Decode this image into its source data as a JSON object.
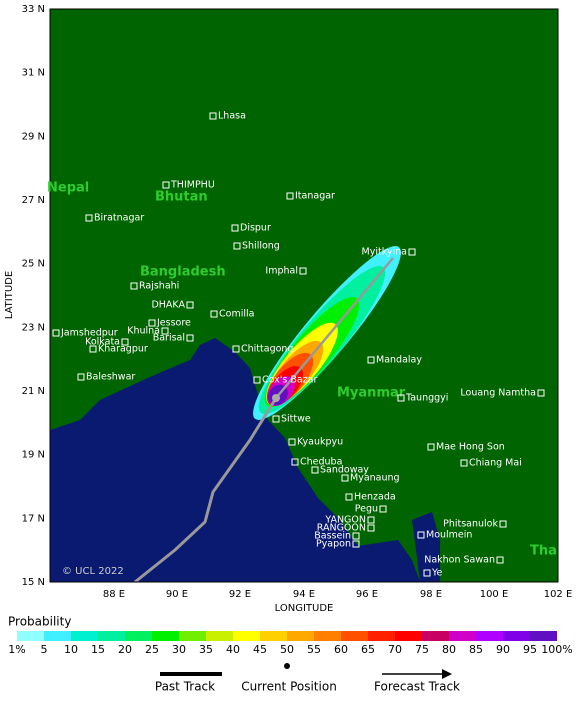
{
  "map": {
    "x_axis_label": "LONGITUDE",
    "y_axis_label": "LATITUDE",
    "x_ticks": [
      "88 E",
      "90 E",
      "92 E",
      "94 E",
      "96 E",
      "98 E",
      "100 E",
      "102 E"
    ],
    "y_ticks": [
      "33 N",
      "31 N",
      "29 N",
      "27 N",
      "25 N",
      "23 N",
      "21 N",
      "19 N",
      "17 N",
      "15 N"
    ],
    "countries": [
      "Nepal",
      "Bhutan",
      "Bangladesh",
      "Myanmar",
      "Tha"
    ],
    "places": [
      "Lhasa",
      "THIMPHU",
      "Itanagar",
      "Biratnagar",
      "Dispur",
      "Shillong",
      "Myitkyina",
      "Imphal",
      "Rajshahi",
      "DHAKA",
      "Comilla",
      "Jessore",
      "Khulna",
      "Jamshedpur",
      "Kolkata",
      "Barisal",
      "Kharagpur",
      "Chittagong",
      "Mandalay",
      "Baleshwar",
      "Cox's Bazar",
      "Taunggyi",
      "Louang Namtha",
      "Sittwe",
      "Kyaukpyu",
      "Mae Hong Son",
      "Cheduba",
      "Chiang Mai",
      "Sandoway",
      "Myanaung",
      "Henzada",
      "Pegu",
      "YANGON",
      "RANGOON",
      "Bassein",
      "Phitsanulok",
      "Moulmein",
      "Pyapon",
      "Nakhon Sawan",
      "Ye"
    ],
    "credit": "© UCL 2022"
  },
  "legend": {
    "title": "Probability",
    "labels": [
      "1%",
      "5",
      "10",
      "15",
      "20",
      "25",
      "30",
      "35",
      "40",
      "45",
      "50",
      "55",
      "60",
      "65",
      "70",
      "75",
      "80",
      "85",
      "90",
      "95",
      "100%"
    ],
    "colors": [
      "#90ffff",
      "#40f0ff",
      "#00f0d0",
      "#00f0a0",
      "#00f060",
      "#00f000",
      "#70f000",
      "#c8f000",
      "#ffff00",
      "#ffd000",
      "#ffa800",
      "#ff8000",
      "#ff5000",
      "#ff2000",
      "#ff0000",
      "#c80064",
      "#d000c8",
      "#b000ff",
      "#8000e8",
      "#6010c0",
      "#600070"
    ]
  },
  "track_legend": {
    "past": "Past Track",
    "current": "Current Position",
    "forecast": "Forecast Track"
  }
}
